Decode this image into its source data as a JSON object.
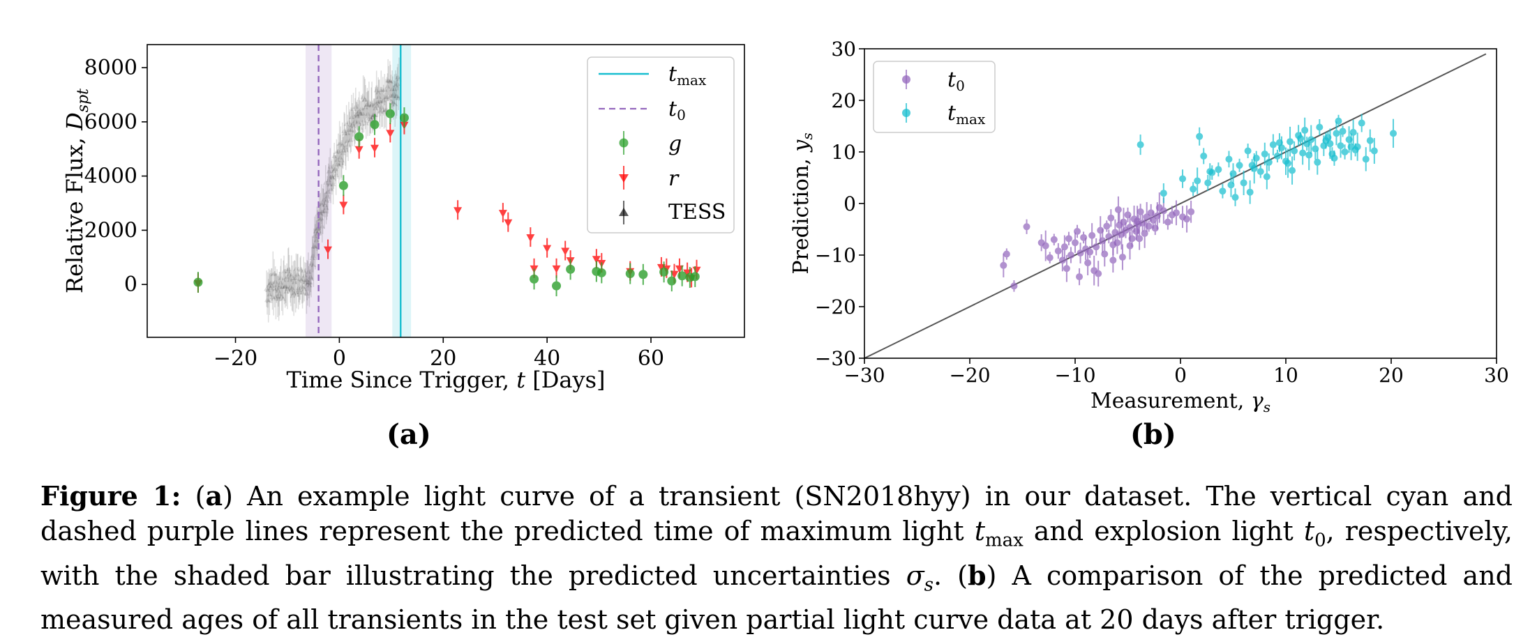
{
  "chart_data": [
    {
      "type": "scatter",
      "panel_label": "(a)",
      "xlabel": "Time Since Trigger, t [Days]",
      "ylabel": "Relative Flux, D_spt",
      "xlim": [
        -37,
        78
      ],
      "ylim": [
        -1950,
        8850
      ],
      "xticks": [
        -20,
        0,
        20,
        40,
        60
      ],
      "yticks": [
        0,
        2000,
        4000,
        6000,
        8000
      ],
      "xtick_labels": [
        "−20",
        "0",
        "20",
        "40",
        "60"
      ],
      "ytick_labels": [
        "0",
        "2000",
        "4000",
        "6000",
        "8000"
      ],
      "grid": false,
      "legend_position": "upper right",
      "legend": [
        "t_max",
        "t_0",
        "g",
        "r",
        "TESS"
      ],
      "vlines": [
        {
          "name": "t_max",
          "x": 11.8,
          "band": [
            10.2,
            13.8
          ],
          "color": "#17becf",
          "style": "solid"
        },
        {
          "name": "t_0",
          "x": -4.0,
          "band": [
            -6.5,
            -1.5
          ],
          "color": "#9467bd",
          "style": "dashed"
        }
      ],
      "series": [
        {
          "name": "g",
          "color": "#2ca02c",
          "marker": "circle",
          "x": [
            -27.2,
            0.8,
            3.8,
            6.8,
            9.8,
            12.5,
            37.5,
            41.8,
            44.5,
            49.5,
            50.5,
            56.0,
            58.5,
            62.5,
            64.0,
            66.0,
            67.5,
            68.5
          ],
          "y": [
            80,
            3650,
            5450,
            5900,
            6300,
            6150,
            200,
            -50,
            560,
            480,
            430,
            400,
            370,
            460,
            130,
            320,
            260,
            290
          ]
        },
        {
          "name": "r",
          "color": "#ff0000",
          "marker": "triangle-down",
          "x": [
            -27.2,
            -2.2,
            0.8,
            3.8,
            6.8,
            9.8,
            12.5,
            22.8,
            31.5,
            32.5,
            36.8,
            37.5,
            40.0,
            41.8,
            43.5,
            44.5,
            49.5,
            50.5,
            56.0,
            62.0,
            63.0,
            64.5,
            65.5,
            67.0,
            67.8,
            68.8
          ],
          "y": [
            60,
            1300,
            2950,
            5000,
            5050,
            5600,
            5900,
            2750,
            2650,
            2300,
            1750,
            600,
            1350,
            600,
            1250,
            900,
            950,
            800,
            500,
            650,
            600,
            400,
            600,
            450,
            250,
            550
          ]
        },
        {
          "name": "TESS",
          "color": "#000000",
          "marker": "triangle-up",
          "x_range": [
            -14,
            11.5
          ]
        }
      ]
    },
    {
      "type": "scatter",
      "panel_label": "(b)",
      "xlabel": "Measurement, γ_s",
      "ylabel": "Prediction, y_s",
      "xlim": [
        -30,
        30
      ],
      "ylim": [
        -30,
        30
      ],
      "xticks": [
        -30,
        -20,
        -10,
        0,
        10,
        20,
        30
      ],
      "yticks": [
        -30,
        -20,
        -10,
        0,
        10,
        20,
        30
      ],
      "xtick_labels": [
        "−30",
        "−20",
        "−10",
        "0",
        "10",
        "20",
        "30"
      ],
      "ytick_labels": [
        "−30",
        "−20",
        "−10",
        "0",
        "10",
        "20",
        "30"
      ],
      "grid": false,
      "legend_position": "upper left",
      "legend": [
        "t_0",
        "t_max"
      ],
      "reference_line": {
        "x": [
          -30,
          29
        ],
        "y": [
          -30,
          29
        ],
        "color": "#555555"
      },
      "series": [
        {
          "name": "t_0",
          "color": "#9467bd",
          "marker": "circle",
          "x": [
            -16.8,
            -16.5,
            -15.8,
            -14.6,
            -13.2,
            -12.8,
            -12.4,
            -12.0,
            -11.6,
            -11.2,
            -11.0,
            -10.6,
            -10.4,
            -10.0,
            -9.8,
            -9.5,
            -9.2,
            -9.0,
            -8.8,
            -8.4,
            -8.2,
            -8.0,
            -7.6,
            -7.4,
            -7.2,
            -7.0,
            -6.8,
            -6.6,
            -6.4,
            -6.2,
            -6.0,
            -5.8,
            -5.6,
            -5.4,
            -5.2,
            -5.0,
            -4.8,
            -4.6,
            -4.4,
            -4.2,
            -4.0,
            -3.8,
            -3.6,
            -3.4,
            -3.2,
            -3.0,
            -2.8,
            -2.6,
            -2.2,
            -2.0,
            -1.6,
            -1.2,
            -0.8,
            -0.4,
            0.2,
            0.6,
            1.0,
            -9.6,
            -10.8,
            -5.5,
            -4.8,
            -7.8,
            -6.4,
            -3.9,
            -8.6,
            -5.9,
            -4.1,
            -2.4
          ],
          "y": [
            -12.0,
            -9.8,
            -16.0,
            -4.5,
            -7.6,
            -8.2,
            -10.5,
            -7.0,
            -9.2,
            -11.0,
            -8.4,
            -6.8,
            -10.0,
            -7.6,
            -5.4,
            -9.6,
            -6.6,
            -8.8,
            -11.5,
            -6.2,
            -13.0,
            -8.4,
            -5.2,
            -7.2,
            -9.8,
            -4.4,
            -6.4,
            -2.8,
            -8.0,
            -5.6,
            -7.6,
            -4.2,
            -6.0,
            -3.6,
            -5.2,
            -2.2,
            -4.6,
            -6.8,
            -3.0,
            -5.4,
            -4.0,
            -1.6,
            -3.8,
            -5.8,
            -2.6,
            -4.4,
            -1.8,
            -3.2,
            -2.4,
            -0.8,
            -1.4,
            -3.6,
            -2.2,
            -1.8,
            -2.6,
            -3.0,
            -1.6,
            -14.2,
            -12.6,
            -10.4,
            -8.2,
            -13.6,
            -11.0,
            -6.8,
            -9.4,
            -1.2,
            -3.4,
            -4.8
          ]
        },
        {
          "name": "t_max",
          "color": "#17becf",
          "marker": "circle",
          "x": [
            -3.8,
            -1.6,
            0.2,
            1.2,
            1.8,
            2.2,
            2.6,
            3.0,
            3.6,
            4.0,
            4.6,
            5.0,
            5.2,
            5.6,
            6.0,
            6.4,
            6.8,
            7.2,
            7.6,
            8.0,
            8.4,
            8.8,
            9.2,
            9.6,
            10.0,
            10.4,
            10.8,
            11.2,
            11.6,
            12.0,
            12.4,
            12.8,
            13.2,
            13.6,
            14.0,
            14.4,
            14.8,
            15.2,
            15.6,
            16.0,
            16.4,
            16.8,
            17.2,
            17.6,
            18.0,
            18.4,
            20.2,
            8.2,
            9.4,
            10.6,
            11.8,
            13.0,
            14.2,
            15.4,
            16.6,
            6.6,
            7.0,
            12.2,
            13.8,
            15.0,
            1.6,
            2.8,
            4.8,
            10.2,
            11.4,
            14.6,
            16.2
          ],
          "y": [
            11.4,
            2.0,
            4.8,
            2.8,
            13.0,
            9.2,
            4.0,
            6.0,
            6.6,
            2.4,
            8.6,
            5.8,
            1.2,
            7.4,
            4.0,
            10.2,
            7.4,
            8.8,
            6.2,
            9.6,
            8.0,
            11.4,
            9.2,
            10.8,
            8.2,
            12.0,
            10.2,
            13.2,
            9.8,
            11.6,
            12.4,
            10.6,
            14.8,
            11.2,
            12.8,
            9.6,
            13.6,
            11.2,
            10.0,
            12.4,
            13.8,
            11.0,
            15.6,
            8.6,
            12.2,
            10.2,
            13.6,
            5.2,
            11.8,
            6.4,
            14.2,
            8.0,
            11.6,
            14.0,
            10.4,
            2.2,
            6.8,
            9.4,
            12.2,
            16.0,
            4.4,
            6.2,
            3.6,
            7.8,
            12.6,
            8.8,
            11.0
          ]
        }
      ]
    }
  ],
  "caption": {
    "figure_label": "Figure 1:",
    "a_open": "(",
    "a_label": "a",
    "a_close": ")",
    "part_a_1": "An example light curve of a transient (SN2018hyy) in our dataset. The vertical cyan and dashed purple lines represent the predicted time of maximum light",
    "tmax_base": "t",
    "tmax_sub": "max",
    "part_a_2": "and explosion light",
    "t0_base": "t",
    "t0_sub": "0",
    "part_a_3": ", respectively, with the shaded bar illustrating the predicted uncertainties",
    "sigma_base": "σ",
    "sigma_sub": "s",
    "part_a_4": ". (",
    "b_label": "b",
    "part_b": ") A comparison of the predicted and measured ages of all transients in the test set given partial light curve data at 20 days after trigger."
  },
  "colors": {
    "g": "#2ca02c",
    "r": "#ff0000",
    "tess": "#000000",
    "cyan": "#17becf",
    "purple": "#9467bd",
    "axis": "#000000"
  }
}
